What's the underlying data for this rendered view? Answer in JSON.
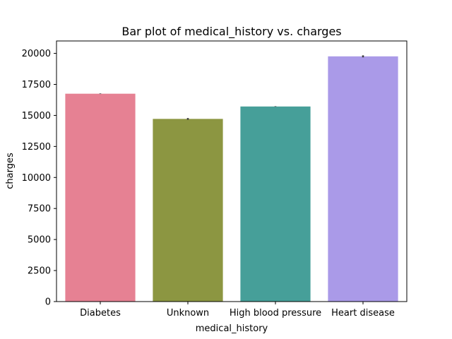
{
  "chart_data": {
    "type": "bar",
    "title": "Bar plot of medical_history vs. charges",
    "xlabel": "medical_history",
    "ylabel": "charges",
    "categories": [
      "Diabetes",
      "Unknown",
      "High blood pressure",
      "Heart disease"
    ],
    "values": [
      16750,
      14720,
      15720,
      19760
    ],
    "error_bars": [
      {
        "low": 16730,
        "high": 16770
      },
      {
        "low": 14650,
        "high": 14790
      },
      {
        "low": 15700,
        "high": 15740
      },
      {
        "low": 19680,
        "high": 19840
      }
    ],
    "colors": [
      "#e68193",
      "#8c9641",
      "#469f99",
      "#aa9ae8"
    ],
    "ylim": [
      0,
      21000
    ],
    "yticks": [
      0,
      2500,
      5000,
      7500,
      10000,
      12500,
      15000,
      17500,
      20000
    ],
    "grid": false,
    "legend": "none"
  }
}
